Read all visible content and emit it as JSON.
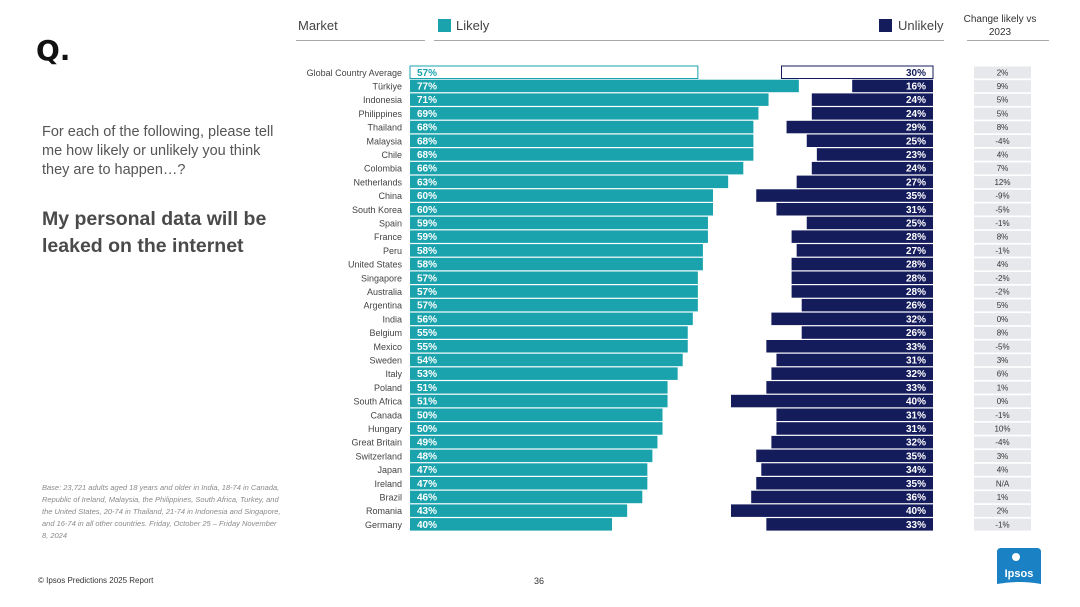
{
  "page": {
    "q_mark": "Q.",
    "question": "For each of the following, please tell me how likely or unlikely you think they are to happen…?",
    "topic": "My personal data will be leaked on the internet",
    "base_note": "Base: 23,721 adults aged 18 years and older in India, 18-74 in Canada, Republic of Ireland, Malaysia, the Philippines, South Africa, Turkey, and the United States, 20-74 in Thailand, 21-74 in Indonesia and Singapore, and 16-74 in all other countries. Friday, October 25 – Friday November 8, 2024",
    "footer_credit": "© Ipsos Predictions 2025 Report",
    "page_number": "36",
    "logo_text": "Ipsos"
  },
  "colors": {
    "likely": "#1aa3ad",
    "unlikely": "#141c5c",
    "change_bg": "#e6e8ec",
    "logo": "#1a82c4"
  },
  "chart_data": {
    "type": "bar",
    "headers": {
      "market": "Market",
      "likely": "Likely",
      "unlikely": "Unlikely",
      "change": "Change likely vs 2023"
    },
    "xlim": [
      0,
      100
    ],
    "categories": [
      "Global Country Average",
      "Türkiye",
      "Indonesia",
      "Philippines",
      "Thailand",
      "Malaysia",
      "Chile",
      "Colombia",
      "Netherlands",
      "China",
      "South Korea",
      "Spain",
      "France",
      "Peru",
      "United States",
      "Singapore",
      "Australia",
      "Argentina",
      "India",
      "Belgium",
      "Mexico",
      "Sweden",
      "Italy",
      "Poland",
      "South Africa",
      "Canada",
      "Hungary",
      "Great Britain",
      "Switzerland",
      "Japan",
      "Ireland",
      "Brazil",
      "Romania",
      "Germany"
    ],
    "series": [
      {
        "name": "Likely",
        "values": [
          57,
          77,
          71,
          69,
          68,
          68,
          68,
          66,
          63,
          60,
          60,
          59,
          59,
          58,
          58,
          57,
          57,
          57,
          56,
          55,
          55,
          54,
          53,
          51,
          51,
          50,
          50,
          49,
          48,
          47,
          47,
          46,
          43,
          40
        ]
      },
      {
        "name": "Unlikely",
        "values": [
          30,
          16,
          24,
          24,
          29,
          25,
          23,
          24,
          27,
          35,
          31,
          25,
          28,
          27,
          28,
          28,
          28,
          26,
          32,
          26,
          33,
          31,
          32,
          33,
          40,
          31,
          31,
          32,
          35,
          34,
          35,
          36,
          40,
          33
        ]
      }
    ],
    "change_vs_2023": [
      "2%",
      "9%",
      "5%",
      "5%",
      "8%",
      "-4%",
      "4%",
      "7%",
      "12%",
      "-9%",
      "-5%",
      "-1%",
      "8%",
      "-1%",
      "4%",
      "-2%",
      "-2%",
      "5%",
      "0%",
      "8%",
      "-5%",
      "3%",
      "6%",
      "1%",
      "0%",
      "-1%",
      "10%",
      "-4%",
      "3%",
      "4%",
      "N/A",
      "1%",
      "2%",
      "-1%"
    ]
  }
}
